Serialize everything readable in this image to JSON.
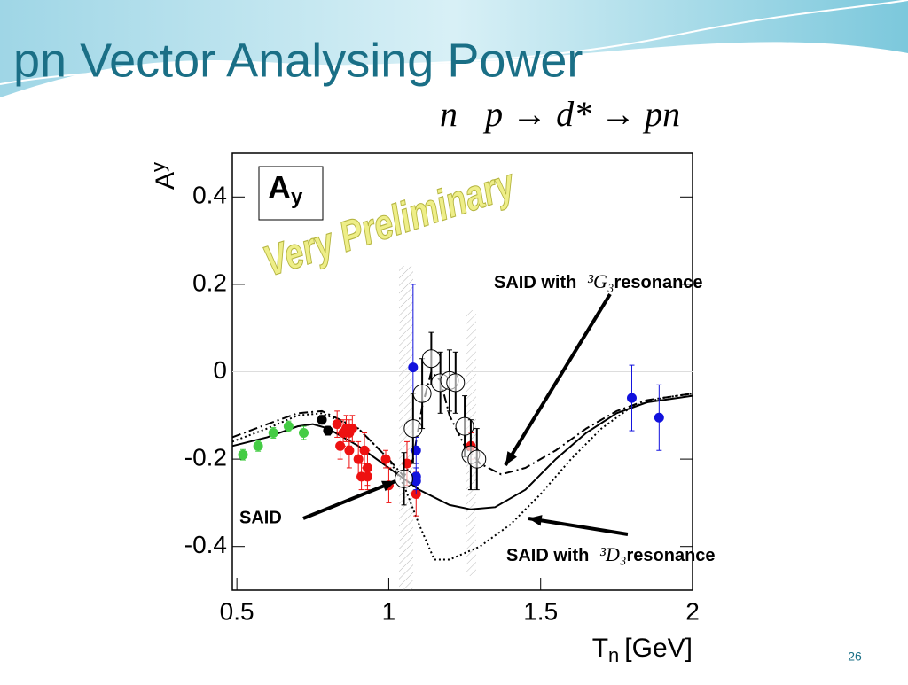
{
  "slide_title": "pn Vector Analysing Power",
  "reaction": "n⃗p → d* → pn",
  "page_number": "26",
  "chart_data": {
    "type": "scatter",
    "watermark": "Very Preliminary",
    "legend_box": {
      "main": "A",
      "sub": "y"
    },
    "ylabel": {
      "main": "A",
      "sub": "y"
    },
    "xlabel": {
      "main": "T",
      "sub": "n",
      "unit": "[GeV]"
    },
    "xlim": [
      0.485,
      2.0
    ],
    "ylim": [
      -0.5,
      0.5
    ],
    "xticks": [
      0.5,
      1,
      1.5,
      2
    ],
    "yticks": [
      -0.4,
      -0.2,
      0,
      0.2,
      0.4
    ],
    "series": [
      {
        "color": "#44cc44",
        "marker": "filled",
        "x": [
          0.52,
          0.57,
          0.62,
          0.67,
          0.72
        ],
        "values": [
          -0.19,
          -0.17,
          -0.14,
          -0.125,
          -0.14
        ],
        "errors": [
          0.012,
          0.012,
          0.012,
          0.012,
          0.015
        ]
      },
      {
        "color": "#000000",
        "marker": "filled",
        "x": [
          0.78,
          0.8
        ],
        "values": [
          -0.11,
          -0.135
        ],
        "errors": [
          0.01,
          0.01
        ]
      },
      {
        "color": "#ee1111",
        "marker": "filled",
        "x": [
          0.83,
          0.85,
          0.86,
          0.87,
          0.88,
          0.84,
          0.87,
          0.9,
          0.92,
          0.93,
          0.91,
          0.93,
          0.99,
          1.0,
          1.06,
          1.09,
          1.27
        ],
        "values": [
          -0.12,
          -0.14,
          -0.13,
          -0.14,
          -0.13,
          -0.17,
          -0.18,
          -0.2,
          -0.18,
          -0.22,
          -0.24,
          -0.24,
          -0.2,
          -0.26,
          -0.21,
          -0.28,
          -0.17
        ],
        "errors": [
          0.03,
          0.03,
          0.03,
          0.03,
          0.03,
          0.03,
          0.04,
          0.04,
          0.04,
          0.04,
          0.03,
          0.03,
          0.02,
          0.04,
          0.05,
          0.05,
          0.03
        ]
      },
      {
        "color": "#1111dd",
        "marker": "filled",
        "x": [
          1.08,
          1.09,
          1.09,
          1.09,
          1.8,
          1.89
        ],
        "values": [
          0.01,
          -0.18,
          -0.24,
          -0.25,
          -0.06,
          -0.105
        ],
        "errors": [
          0.19,
          0.03,
          0.03,
          0.03,
          0.075,
          0.075
        ]
      },
      {
        "color": "#000000",
        "marker": "open",
        "x": [
          1.05,
          1.08,
          1.11,
          1.14,
          1.17,
          1.2,
          1.22,
          1.25,
          1.27,
          1.29
        ],
        "values": [
          -0.245,
          -0.13,
          -0.05,
          0.03,
          -0.025,
          -0.02,
          -0.025,
          -0.125,
          -0.19,
          -0.2
        ],
        "errors": [
          0.06,
          0.08,
          0.08,
          0.06,
          0.07,
          0.07,
          0.07,
          0.07,
          0.08,
          0.07
        ]
      }
    ],
    "lines": [
      {
        "name": "SAID",
        "style": "solid",
        "x": [
          0.485,
          0.6,
          0.7,
          0.75,
          0.8,
          0.9,
          1.0,
          1.1,
          1.2,
          1.27,
          1.35,
          1.45,
          1.55,
          1.65,
          1.75,
          1.85,
          1.95,
          2.0
        ],
        "y": [
          -0.17,
          -0.15,
          -0.125,
          -0.12,
          -0.13,
          -0.17,
          -0.22,
          -0.27,
          -0.305,
          -0.315,
          -0.31,
          -0.27,
          -0.2,
          -0.14,
          -0.095,
          -0.07,
          -0.06,
          -0.055
        ]
      },
      {
        "name": "SAID with",
        "state": "³G₃",
        "suffix": "resonance",
        "style": "dashdot",
        "x": [
          0.485,
          0.6,
          0.7,
          0.78,
          0.9,
          1.0,
          1.05,
          1.08,
          1.11,
          1.14,
          1.17,
          1.2,
          1.25,
          1.3,
          1.37,
          1.45,
          1.55,
          1.65,
          1.75,
          1.85,
          2.0
        ],
        "y": [
          -0.15,
          -0.12,
          -0.095,
          -0.09,
          -0.13,
          -0.2,
          -0.24,
          -0.2,
          -0.08,
          0.0,
          -0.02,
          -0.1,
          -0.17,
          -0.21,
          -0.235,
          -0.22,
          -0.18,
          -0.13,
          -0.09,
          -0.065,
          -0.05
        ]
      },
      {
        "name": "SAID with",
        "state": "³D₃",
        "suffix": "resonance",
        "style": "dotted",
        "x": [
          0.485,
          0.6,
          0.7,
          0.78,
          0.9,
          1.0,
          1.05,
          1.1,
          1.15,
          1.2,
          1.3,
          1.4,
          1.5,
          1.6,
          1.7,
          1.8,
          1.9,
          2.0
        ],
        "y": [
          -0.16,
          -0.13,
          -0.1,
          -0.095,
          -0.13,
          -0.2,
          -0.26,
          -0.35,
          -0.43,
          -0.43,
          -0.4,
          -0.35,
          -0.28,
          -0.2,
          -0.13,
          -0.08,
          -0.06,
          -0.05
        ]
      }
    ]
  }
}
